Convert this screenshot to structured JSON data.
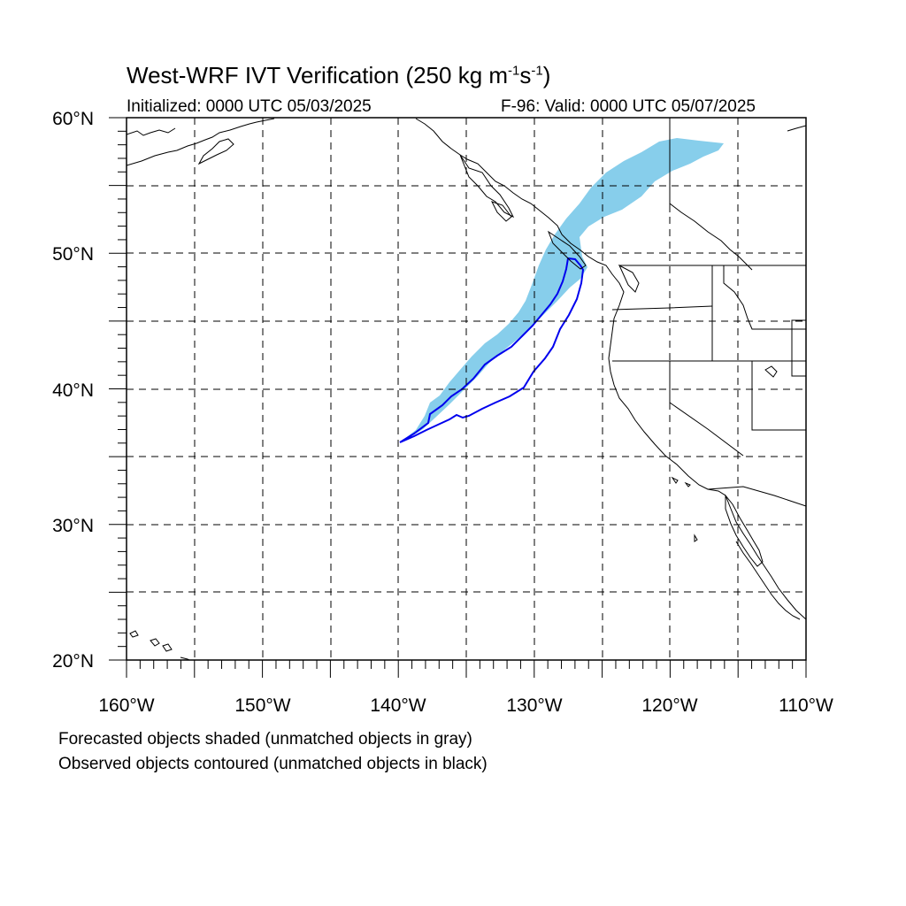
{
  "title": {
    "prefix": "West-WRF IVT Verification (250 kg m",
    "exp1": "-1",
    "mid": "s",
    "exp2": "-1",
    "suffix": ")"
  },
  "initialized": "Initialized: 0000 UTC 05/03/2025",
  "valid": "F-96: Valid: 0000 UTC 05/07/2025",
  "lat_labels": [
    "60°N",
    "50°N",
    "40°N",
    "30°N",
    "20°N"
  ],
  "lon_labels": [
    "160°W",
    "150°W",
    "140°W",
    "130°W",
    "120°W",
    "110°W"
  ],
  "notes": {
    "line1": "Forecasted objects shaded (unmatched objects in gray)",
    "line2": "Observed objects contoured (unmatched objects in black)"
  },
  "colors": {
    "forecast_fill": "#87ceeb",
    "observed_contour": "#0000ee",
    "coast": "#000000",
    "grid": "#000000"
  },
  "map": {
    "lon_range": [
      -160,
      -110
    ],
    "lat_range": [
      20,
      60
    ],
    "grid_spacing_deg": 5,
    "gridlines": "dashed"
  }
}
